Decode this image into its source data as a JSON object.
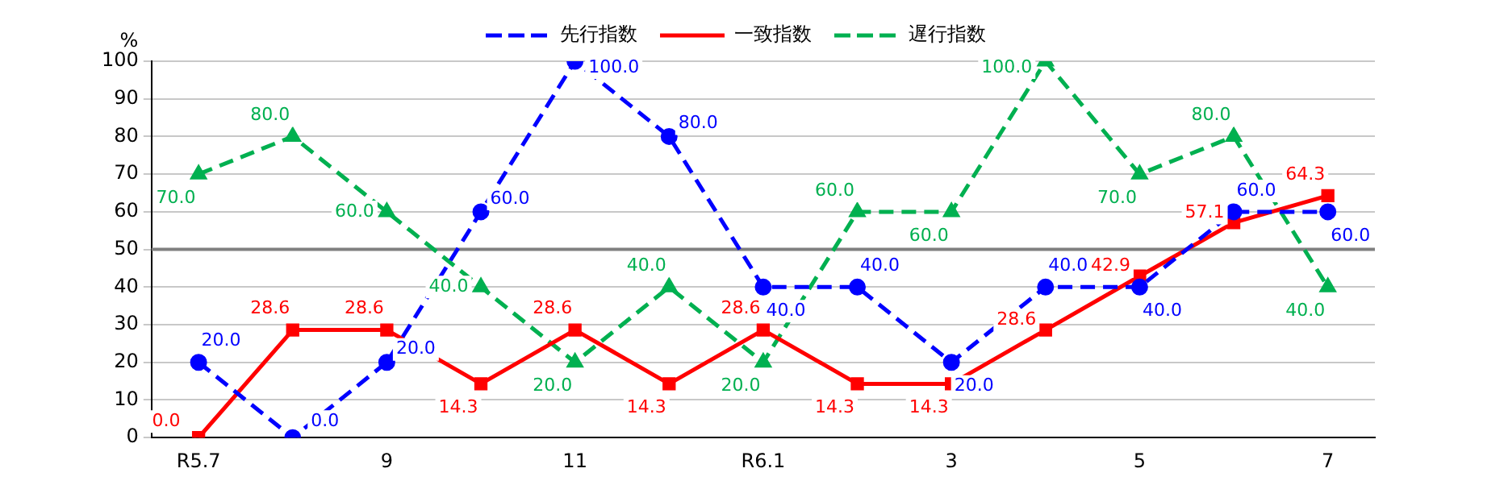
{
  "chart_data": {
    "type": "line",
    "ylabel": "%",
    "categories": [
      "R5.7",
      null,
      "9",
      null,
      "11",
      null,
      "R6.1",
      null,
      "3",
      null,
      "5",
      null,
      "7"
    ],
    "series": [
      {
        "name": "先行指数",
        "color": "#0000ff",
        "marker": "circle",
        "line_style": "dashed",
        "values": [
          20,
          0,
          20,
          60,
          100,
          80,
          40,
          40,
          20,
          40,
          40,
          60,
          60
        ],
        "value_labels": [
          "20.0",
          "0.0",
          "20.0",
          "60.0",
          "100.0",
          "80.0",
          "40.0",
          "40.0",
          "20.0",
          "40.0",
          "40.0",
          "60.0",
          "60.0"
        ]
      },
      {
        "name": "一致指数",
        "color": "#ff0000",
        "marker": "square",
        "line_style": "solid",
        "values": [
          0,
          28.6,
          28.6,
          14.3,
          28.6,
          14.3,
          28.6,
          14.3,
          14.3,
          28.6,
          42.9,
          57.1,
          64.3
        ],
        "value_labels": [
          "0.0",
          "28.6",
          "28.6",
          "14.3",
          "28.6",
          "14.3",
          "28.6",
          "14.3",
          "14.3",
          "28.6",
          "42.9",
          "57.1",
          "64.3"
        ]
      },
      {
        "name": "遅行指数",
        "color": "#00b050",
        "marker": "triangle",
        "line_style": "dashed",
        "values": [
          70,
          80,
          60,
          40,
          20,
          40,
          20,
          60,
          60,
          100,
          70,
          80,
          40
        ],
        "value_labels": [
          "70.0",
          "80.0",
          "60.0",
          "40.0",
          "20.0",
          "40.0",
          "20.0",
          "60.0",
          "60.0",
          "100.0",
          "70.0",
          "80.0",
          "40.0"
        ]
      }
    ],
    "ylim": [
      0,
      100
    ],
    "yticks": [
      0,
      10,
      20,
      30,
      40,
      50,
      60,
      70,
      80,
      90,
      100
    ],
    "grid": "y",
    "legend": "top",
    "ref_lines": [
      {
        "axis": "y",
        "value": 50,
        "color": "#808080"
      }
    ]
  }
}
